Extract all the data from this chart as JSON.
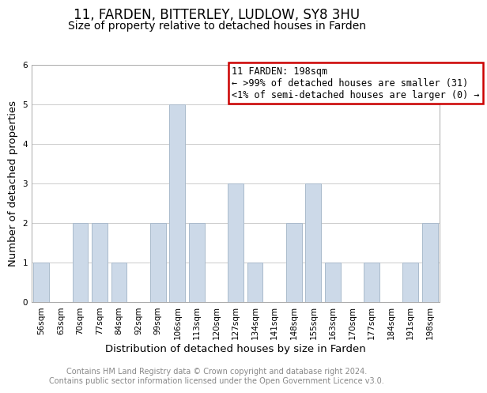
{
  "title": "11, FARDEN, BITTERLEY, LUDLOW, SY8 3HU",
  "subtitle": "Size of property relative to detached houses in Farden",
  "xlabel": "Distribution of detached houses by size in Farden",
  "ylabel": "Number of detached properties",
  "bar_color": "#ccd9e8",
  "bar_edgecolor": "#aabbcc",
  "bins": [
    "56sqm",
    "63sqm",
    "70sqm",
    "77sqm",
    "84sqm",
    "92sqm",
    "99sqm",
    "106sqm",
    "113sqm",
    "120sqm",
    "127sqm",
    "134sqm",
    "141sqm",
    "148sqm",
    "155sqm",
    "163sqm",
    "170sqm",
    "177sqm",
    "184sqm",
    "191sqm",
    "198sqm"
  ],
  "values": [
    1,
    0,
    2,
    2,
    1,
    0,
    2,
    5,
    2,
    0,
    3,
    1,
    0,
    2,
    3,
    1,
    0,
    1,
    0,
    1,
    2
  ],
  "ylim": [
    0,
    6
  ],
  "yticks": [
    0,
    1,
    2,
    3,
    4,
    5,
    6
  ],
  "legend_title": "11 FARDEN: 198sqm",
  "legend_line1": "← >99% of detached houses are smaller (31)",
  "legend_line2": "<1% of semi-detached houses are larger (0) →",
  "legend_border_color": "#cc0000",
  "footer_line1": "Contains HM Land Registry data © Crown copyright and database right 2024.",
  "footer_line2": "Contains public sector information licensed under the Open Government Licence v3.0.",
  "title_fontsize": 12,
  "subtitle_fontsize": 10,
  "axis_label_fontsize": 9.5,
  "tick_fontsize": 7.5,
  "footer_fontsize": 7,
  "legend_fontsize": 8.5
}
